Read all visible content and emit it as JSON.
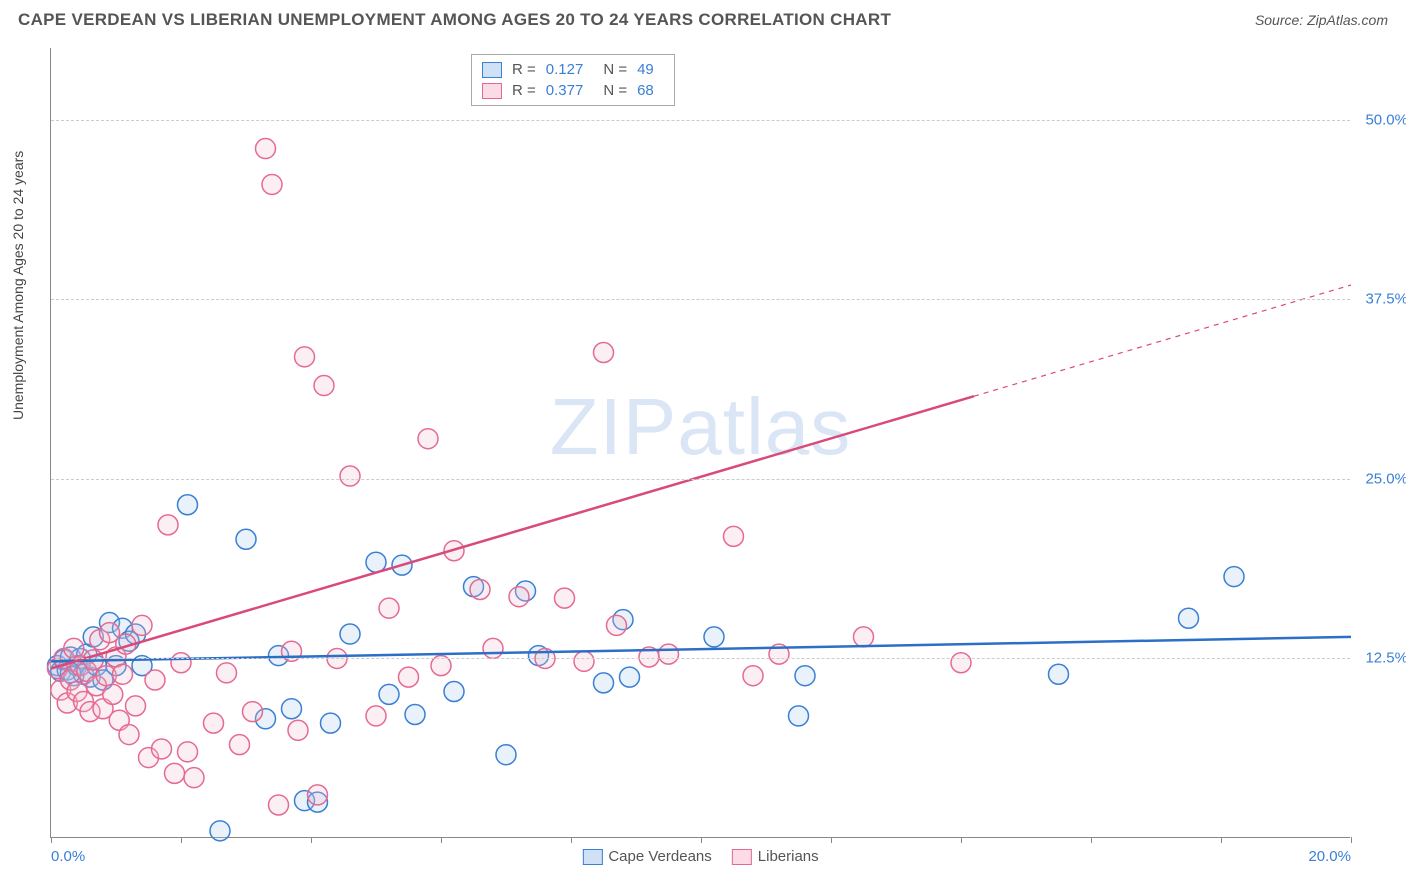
{
  "header": {
    "title": "CAPE VERDEAN VS LIBERIAN UNEMPLOYMENT AMONG AGES 20 TO 24 YEARS CORRELATION CHART",
    "source": "Source: ZipAtlas.com"
  },
  "chart": {
    "type": "scatter",
    "ylabel": "Unemployment Among Ages 20 to 24 years",
    "watermark": "ZIPatlas",
    "xlim": [
      0,
      20
    ],
    "ylim": [
      0,
      55
    ],
    "background_color": "#ffffff",
    "grid_color": "#cccccc",
    "axis_color": "#888888",
    "tick_label_color": "#3a7fd5",
    "tick_fontsize": 15,
    "ylabel_fontsize": 14,
    "ytick_labels": [
      "12.5%",
      "25.0%",
      "37.5%",
      "50.0%"
    ],
    "ytick_values": [
      12.5,
      25.0,
      37.5,
      50.0
    ],
    "xtick_values": [
      0,
      2,
      4,
      6,
      8,
      10,
      12,
      14,
      16,
      18,
      20
    ],
    "xtick_labels_shown": {
      "0": "0.0%",
      "20": "20.0%"
    },
    "marker_radius": 10,
    "marker_fill_opacity": 0.25,
    "marker_stroke_width": 1.5,
    "series": [
      {
        "name": "Cape Verdeans",
        "color_stroke": "#3a7fd5",
        "color_fill": "#a9c9ed",
        "R": "0.127",
        "N": "49",
        "trend_line": {
          "x1": 0,
          "y1": 12.3,
          "x2": 20,
          "y2": 14.0,
          "color": "#2b6fc7",
          "width": 2.5,
          "dashed_from_x": null
        },
        "points": [
          [
            0.1,
            12.0
          ],
          [
            0.15,
            11.6
          ],
          [
            0.2,
            12.4
          ],
          [
            0.25,
            11.7
          ],
          [
            0.3,
            12.6
          ],
          [
            0.35,
            11.3
          ],
          [
            0.4,
            12.0
          ],
          [
            0.45,
            12.5
          ],
          [
            0.5,
            11.4
          ],
          [
            0.55,
            12.8
          ],
          [
            0.6,
            11.2
          ],
          [
            0.65,
            14.0
          ],
          [
            0.7,
            12.0
          ],
          [
            0.8,
            11.0
          ],
          [
            0.9,
            15.0
          ],
          [
            1.0,
            12.0
          ],
          [
            1.1,
            14.6
          ],
          [
            1.2,
            13.7
          ],
          [
            1.3,
            14.2
          ],
          [
            1.4,
            12.0
          ],
          [
            2.1,
            23.2
          ],
          [
            2.6,
            0.5
          ],
          [
            3.0,
            20.8
          ],
          [
            3.3,
            8.3
          ],
          [
            3.5,
            12.7
          ],
          [
            3.7,
            9.0
          ],
          [
            3.9,
            2.6
          ],
          [
            4.1,
            2.5
          ],
          [
            4.3,
            8.0
          ],
          [
            4.6,
            14.2
          ],
          [
            5.0,
            19.2
          ],
          [
            5.2,
            10.0
          ],
          [
            5.4,
            19.0
          ],
          [
            5.6,
            8.6
          ],
          [
            6.2,
            10.2
          ],
          [
            6.5,
            17.5
          ],
          [
            7.0,
            5.8
          ],
          [
            7.3,
            17.2
          ],
          [
            7.5,
            12.7
          ],
          [
            8.5,
            10.8
          ],
          [
            8.8,
            15.2
          ],
          [
            8.9,
            11.2
          ],
          [
            10.2,
            14.0
          ],
          [
            11.5,
            8.5
          ],
          [
            11.6,
            11.3
          ],
          [
            15.5,
            11.4
          ],
          [
            17.5,
            15.3
          ],
          [
            18.2,
            18.2
          ],
          [
            0.3,
            11.5
          ]
        ]
      },
      {
        "name": "Liberians",
        "color_stroke": "#e56a92",
        "color_fill": "#f5c0d1",
        "R": "0.377",
        "N": "68",
        "trend_line": {
          "x1": 0,
          "y1": 11.8,
          "x2": 20,
          "y2": 38.5,
          "color": "#d94a7a",
          "width": 2.5,
          "dashed_from_x": 14.2
        },
        "points": [
          [
            0.1,
            11.8
          ],
          [
            0.15,
            10.3
          ],
          [
            0.2,
            12.5
          ],
          [
            0.25,
            9.4
          ],
          [
            0.3,
            11.0
          ],
          [
            0.35,
            13.2
          ],
          [
            0.4,
            10.2
          ],
          [
            0.45,
            12.0
          ],
          [
            0.5,
            9.5
          ],
          [
            0.55,
            11.6
          ],
          [
            0.6,
            8.8
          ],
          [
            0.65,
            12.4
          ],
          [
            0.7,
            10.6
          ],
          [
            0.75,
            13.8
          ],
          [
            0.8,
            9.0
          ],
          [
            0.85,
            11.3
          ],
          [
            0.9,
            14.3
          ],
          [
            0.95,
            10.0
          ],
          [
            1.0,
            12.6
          ],
          [
            1.05,
            8.2
          ],
          [
            1.1,
            11.4
          ],
          [
            1.15,
            13.5
          ],
          [
            1.2,
            7.2
          ],
          [
            1.3,
            9.2
          ],
          [
            1.4,
            14.8
          ],
          [
            1.5,
            5.6
          ],
          [
            1.6,
            11.0
          ],
          [
            1.7,
            6.2
          ],
          [
            1.8,
            21.8
          ],
          [
            1.9,
            4.5
          ],
          [
            2.0,
            12.2
          ],
          [
            2.1,
            6.0
          ],
          [
            2.2,
            4.2
          ],
          [
            2.5,
            8.0
          ],
          [
            2.7,
            11.5
          ],
          [
            2.9,
            6.5
          ],
          [
            3.1,
            8.8
          ],
          [
            3.3,
            48.0
          ],
          [
            3.4,
            45.5
          ],
          [
            3.5,
            2.3
          ],
          [
            3.7,
            13.0
          ],
          [
            3.8,
            7.5
          ],
          [
            3.9,
            33.5
          ],
          [
            4.1,
            3.0
          ],
          [
            4.2,
            31.5
          ],
          [
            4.4,
            12.5
          ],
          [
            4.6,
            25.2
          ],
          [
            5.0,
            8.5
          ],
          [
            5.2,
            16.0
          ],
          [
            5.5,
            11.2
          ],
          [
            5.8,
            27.8
          ],
          [
            6.0,
            12.0
          ],
          [
            6.2,
            20.0
          ],
          [
            6.6,
            17.3
          ],
          [
            6.8,
            13.2
          ],
          [
            7.2,
            16.8
          ],
          [
            7.6,
            12.5
          ],
          [
            7.9,
            16.7
          ],
          [
            8.2,
            12.3
          ],
          [
            8.5,
            33.8
          ],
          [
            8.7,
            14.8
          ],
          [
            9.2,
            12.6
          ],
          [
            9.5,
            12.8
          ],
          [
            10.5,
            21.0
          ],
          [
            10.8,
            11.3
          ],
          [
            11.2,
            12.8
          ],
          [
            12.5,
            14.0
          ],
          [
            14.0,
            12.2
          ]
        ]
      }
    ],
    "legend_bottom": [
      {
        "label": "Cape Verdeans",
        "stroke": "#3a7fd5",
        "fill": "#a9c9ed"
      },
      {
        "label": "Liberians",
        "stroke": "#e56a92",
        "fill": "#f5c0d1"
      }
    ]
  }
}
